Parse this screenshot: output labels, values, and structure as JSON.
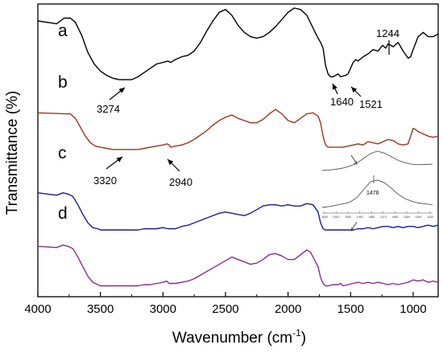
{
  "chart_data": {
    "type": "line",
    "title": "",
    "xlabel": "Wavenumber (cm",
    "xlabel_sup": "-1",
    "xlabel_close": ")",
    "ylabel": "Transmittance (%)",
    "xlim": [
      4000,
      800
    ],
    "x_reversed": true,
    "xticks": [
      4000,
      3500,
      3000,
      2500,
      2000,
      1500,
      1000
    ],
    "xtick_labels": [
      "4000",
      "3500",
      "3000",
      "2500",
      "2000",
      "1500",
      "1000"
    ],
    "yticks_visible": false,
    "grid": false,
    "series": [
      {
        "name": "a",
        "color": "#000000",
        "x": [
          4000,
          3850,
          3790,
          3740,
          3700,
          3650,
          3600,
          3550,
          3500,
          3450,
          3400,
          3350,
          3300,
          3274,
          3250,
          3200,
          3150,
          3100,
          3050,
          3000,
          2960,
          2940,
          2900,
          2850,
          2800,
          2750,
          2700,
          2650,
          2600,
          2550,
          2500,
          2450,
          2400,
          2350,
          2300,
          2250,
          2200,
          2150,
          2100,
          2050,
          2000,
          1950,
          1900,
          1850,
          1800,
          1760,
          1740,
          1720,
          1700,
          1680,
          1660,
          1640,
          1600,
          1580,
          1540,
          1521,
          1500,
          1480,
          1460,
          1440,
          1400,
          1360,
          1320,
          1280,
          1244,
          1220,
          1200,
          1160,
          1120,
          1080,
          1040,
          1020,
          1000,
          960,
          920,
          880,
          840,
          800
        ],
        "y": [
          0.91,
          0.89,
          0.93,
          0.93,
          0.9,
          0.81,
          0.69,
          0.61,
          0.56,
          0.53,
          0.51,
          0.5,
          0.5,
          0.5,
          0.5,
          0.52,
          0.55,
          0.58,
          0.61,
          0.62,
          0.63,
          0.62,
          0.64,
          0.66,
          0.67,
          0.7,
          0.76,
          0.84,
          0.91,
          0.97,
          0.99,
          0.95,
          0.88,
          0.83,
          0.8,
          0.79,
          0.8,
          0.83,
          0.87,
          0.92,
          0.97,
          1.0,
          0.99,
          0.95,
          0.86,
          0.79,
          0.76,
          0.72,
          0.6,
          0.54,
          0.52,
          0.52,
          0.54,
          0.52,
          0.53,
          0.54,
          0.58,
          0.62,
          0.64,
          0.63,
          0.66,
          0.68,
          0.71,
          0.7,
          0.74,
          0.72,
          0.75,
          0.73,
          0.76,
          0.7,
          0.65,
          0.66,
          0.71,
          0.8,
          0.83,
          0.8,
          0.8,
          0.82
        ]
      },
      {
        "name": "b",
        "color": "#a0341f",
        "x": [
          4000,
          3780,
          3740,
          3700,
          3660,
          3620,
          3580,
          3540,
          3500,
          3450,
          3400,
          3350,
          3320,
          3280,
          3200,
          3150,
          3100,
          3050,
          3000,
          2970,
          2950,
          2940,
          2900,
          2850,
          2800,
          2750,
          2700,
          2650,
          2600,
          2550,
          2500,
          2450,
          2400,
          2350,
          2300,
          2250,
          2200,
          2150,
          2100,
          2050,
          2000,
          1950,
          1900,
          1850,
          1800,
          1760,
          1740,
          1720,
          1700,
          1680,
          1640,
          1600,
          1560,
          1520,
          1480,
          1440,
          1400,
          1360,
          1320,
          1280,
          1240,
          1200,
          1160,
          1120,
          1080,
          1040,
          1000,
          980,
          960,
          920,
          880,
          840,
          800
        ],
        "y": [
          0.81,
          0.8,
          0.8,
          0.76,
          0.68,
          0.6,
          0.54,
          0.51,
          0.5,
          0.49,
          0.48,
          0.48,
          0.48,
          0.48,
          0.48,
          0.49,
          0.5,
          0.51,
          0.52,
          0.53,
          0.52,
          0.5,
          0.51,
          0.52,
          0.54,
          0.57,
          0.61,
          0.65,
          0.7,
          0.74,
          0.77,
          0.79,
          0.76,
          0.74,
          0.72,
          0.72,
          0.75,
          0.8,
          0.84,
          0.8,
          0.74,
          0.72,
          0.76,
          0.8,
          0.81,
          0.78,
          0.72,
          0.6,
          0.52,
          0.5,
          0.5,
          0.5,
          0.5,
          0.51,
          0.52,
          0.53,
          0.52,
          0.55,
          0.54,
          0.53,
          0.55,
          0.57,
          0.56,
          0.53,
          0.52,
          0.53,
          0.67,
          0.66,
          0.64,
          0.62,
          0.6,
          0.59,
          0.6
        ]
      },
      {
        "name": "c",
        "color": "#1a1a9e",
        "x": [
          4000,
          3850,
          3800,
          3760,
          3720,
          3680,
          3640,
          3600,
          3560,
          3520,
          3500,
          3450,
          3400,
          3350,
          3300,
          3250,
          3200,
          3150,
          3100,
          3050,
          3000,
          2960,
          2900,
          2850,
          2800,
          2750,
          2700,
          2650,
          2600,
          2550,
          2500,
          2450,
          2400,
          2350,
          2300,
          2250,
          2200,
          2150,
          2100,
          2050,
          2000,
          1950,
          1900,
          1850,
          1800,
          1760,
          1740,
          1720,
          1700,
          1680,
          1640,
          1600,
          1560,
          1520,
          1480,
          1440,
          1400,
          1360,
          1320,
          1280,
          1240,
          1200,
          1160,
          1120,
          1080,
          1040,
          1000,
          960,
          920,
          880,
          840,
          800
        ],
        "y": [
          0.8,
          0.78,
          0.8,
          0.79,
          0.77,
          0.7,
          0.62,
          0.55,
          0.51,
          0.5,
          0.49,
          0.49,
          0.49,
          0.49,
          0.49,
          0.49,
          0.49,
          0.5,
          0.5,
          0.5,
          0.51,
          0.5,
          0.5,
          0.52,
          0.53,
          0.55,
          0.57,
          0.59,
          0.61,
          0.63,
          0.64,
          0.63,
          0.62,
          0.61,
          0.63,
          0.66,
          0.69,
          0.7,
          0.7,
          0.69,
          0.7,
          0.69,
          0.69,
          0.71,
          0.7,
          0.64,
          0.55,
          0.5,
          0.49,
          0.49,
          0.49,
          0.49,
          0.49,
          0.49,
          0.49,
          0.5,
          0.5,
          0.51,
          0.5,
          0.51,
          0.52,
          0.52,
          0.51,
          0.52,
          0.51,
          0.52,
          0.52,
          0.51,
          0.52,
          0.53,
          0.52,
          0.53
        ]
      },
      {
        "name": "d",
        "color": "#8b2a8f",
        "x": [
          4000,
          3850,
          3800,
          3760,
          3720,
          3680,
          3640,
          3600,
          3560,
          3520,
          3500,
          3450,
          3400,
          3350,
          3300,
          3250,
          3200,
          3150,
          3100,
          3050,
          3000,
          2970,
          2950,
          2900,
          2850,
          2800,
          2750,
          2700,
          2650,
          2600,
          2550,
          2500,
          2450,
          2400,
          2350,
          2300,
          2250,
          2200,
          2150,
          2100,
          2050,
          2000,
          1950,
          1900,
          1850,
          1820,
          1800,
          1760,
          1740,
          1720,
          1700,
          1680,
          1640,
          1600,
          1580,
          1560,
          1520,
          1480,
          1440,
          1400,
          1360,
          1320,
          1280,
          1240,
          1200,
          1160,
          1120,
          1080,
          1040,
          1000,
          960,
          920,
          880,
          840,
          800
        ],
        "y": [
          0.81,
          0.8,
          0.82,
          0.81,
          0.79,
          0.72,
          0.64,
          0.56,
          0.51,
          0.49,
          0.48,
          0.48,
          0.48,
          0.48,
          0.48,
          0.48,
          0.48,
          0.49,
          0.49,
          0.5,
          0.51,
          0.52,
          0.5,
          0.5,
          0.51,
          0.52,
          0.54,
          0.57,
          0.6,
          0.63,
          0.66,
          0.69,
          0.72,
          0.7,
          0.68,
          0.66,
          0.67,
          0.7,
          0.74,
          0.75,
          0.73,
          0.7,
          0.7,
          0.74,
          0.78,
          0.76,
          0.72,
          0.64,
          0.55,
          0.5,
          0.48,
          0.48,
          0.49,
          0.49,
          0.5,
          0.48,
          0.49,
          0.5,
          0.51,
          0.5,
          0.51,
          0.5,
          0.51,
          0.5,
          0.49,
          0.5,
          0.49,
          0.5,
          0.51,
          0.53,
          0.52,
          0.53,
          0.51,
          0.52,
          0.51
        ]
      }
    ],
    "annotations": [
      {
        "label": "3274",
        "series": "a"
      },
      {
        "label": "1640",
        "series": "a"
      },
      {
        "label": "1521",
        "series": "a"
      },
      {
        "label": "1244",
        "series": "a"
      },
      {
        "label": "3320",
        "series": "b"
      },
      {
        "label": "2940",
        "series": "b"
      }
    ],
    "inset": {
      "label": "1476",
      "color": "#555555",
      "upper": [
        0.2,
        0.22,
        0.25,
        0.3,
        0.38,
        0.5,
        0.7,
        0.9,
        1.0,
        0.92,
        0.78,
        0.62,
        0.52,
        0.46,
        0.44,
        0.45,
        0.46
      ],
      "lower": [
        0.0,
        0.02,
        0.05,
        0.08,
        0.12,
        0.22,
        0.4,
        0.58,
        0.62,
        0.56,
        0.44,
        0.3,
        0.2,
        0.14,
        0.1,
        0.08,
        0.06
      ],
      "tick_labels": [
        "1520",
        "1510",
        "1500",
        "1490",
        "1480",
        "1470",
        "1460",
        "1450",
        "1440",
        "1430"
      ]
    }
  }
}
